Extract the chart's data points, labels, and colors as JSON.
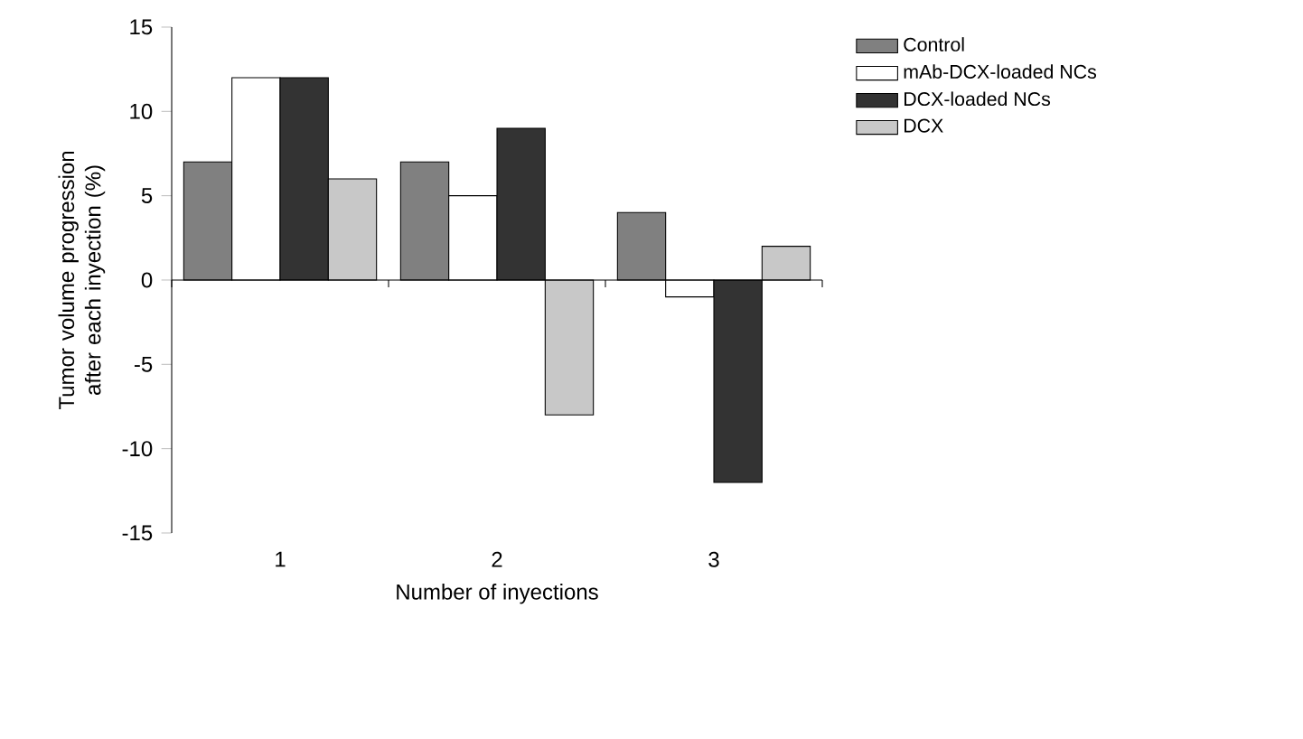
{
  "chart_data": {
    "type": "bar",
    "xlabel": "Number of inyections",
    "ylabel": "Tumor volume progression after each inyection (%)",
    "categories": [
      "1",
      "2",
      "3"
    ],
    "series": [
      {
        "name": "Control",
        "color": "#808080",
        "values": [
          7,
          7,
          4
        ]
      },
      {
        "name": "mAb-DCX-loaded NCs",
        "color": "#ffffff",
        "values": [
          12,
          5,
          -1
        ]
      },
      {
        "name": "DCX-loaded NCs",
        "color": "#333333",
        "values": [
          12,
          9,
          -12
        ]
      },
      {
        "name": "DCX",
        "color": "#c8c8c8",
        "values": [
          6,
          -8,
          2
        ]
      }
    ],
    "ylim": [
      -15,
      15
    ],
    "yticks": [
      -15,
      -10,
      -5,
      0,
      5,
      10,
      15
    ],
    "legend": "right",
    "grid": false,
    "ref_lines": [
      {
        "axis": "y",
        "value": 0,
        "color": "#000000"
      }
    ]
  }
}
